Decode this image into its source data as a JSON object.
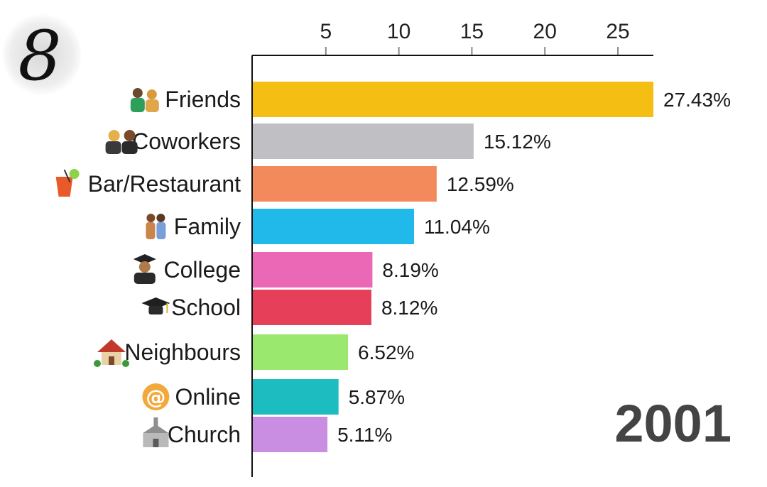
{
  "chart_data": {
    "type": "bar",
    "orientation": "horizontal",
    "categories": [
      "Friends",
      "Coworkers",
      "Bar/Restaurant",
      "Family",
      "College",
      "School",
      "Neighbours",
      "Online",
      "Church"
    ],
    "values": [
      27.43,
      15.12,
      12.59,
      11.04,
      8.19,
      8.12,
      6.52,
      5.87,
      5.11
    ],
    "value_labels": [
      "27.43%",
      "15.12%",
      "12.59%",
      "11.04%",
      "8.19%",
      "8.12%",
      "6.52%",
      "5.87%",
      "5.11%"
    ],
    "colors": [
      "#f5be12",
      "#bfbfc4",
      "#f28a5c",
      "#21b8ea",
      "#ea68b5",
      "#e63f5a",
      "#9ae86e",
      "#1dbcc0",
      "#c98de2"
    ],
    "icons": [
      "friends-icon",
      "coworkers-icon",
      "cocktail-icon",
      "family-icon",
      "graduate-icon",
      "mortarboard-icon",
      "house-icon",
      "at-sign-icon",
      "church-icon"
    ],
    "xticks": [
      5,
      10,
      15,
      20,
      25
    ],
    "xlim": [
      0,
      27.43
    ],
    "axis_position": "top",
    "year": "2001",
    "legend": "none",
    "grid": false
  },
  "logo": {
    "text": "8"
  }
}
